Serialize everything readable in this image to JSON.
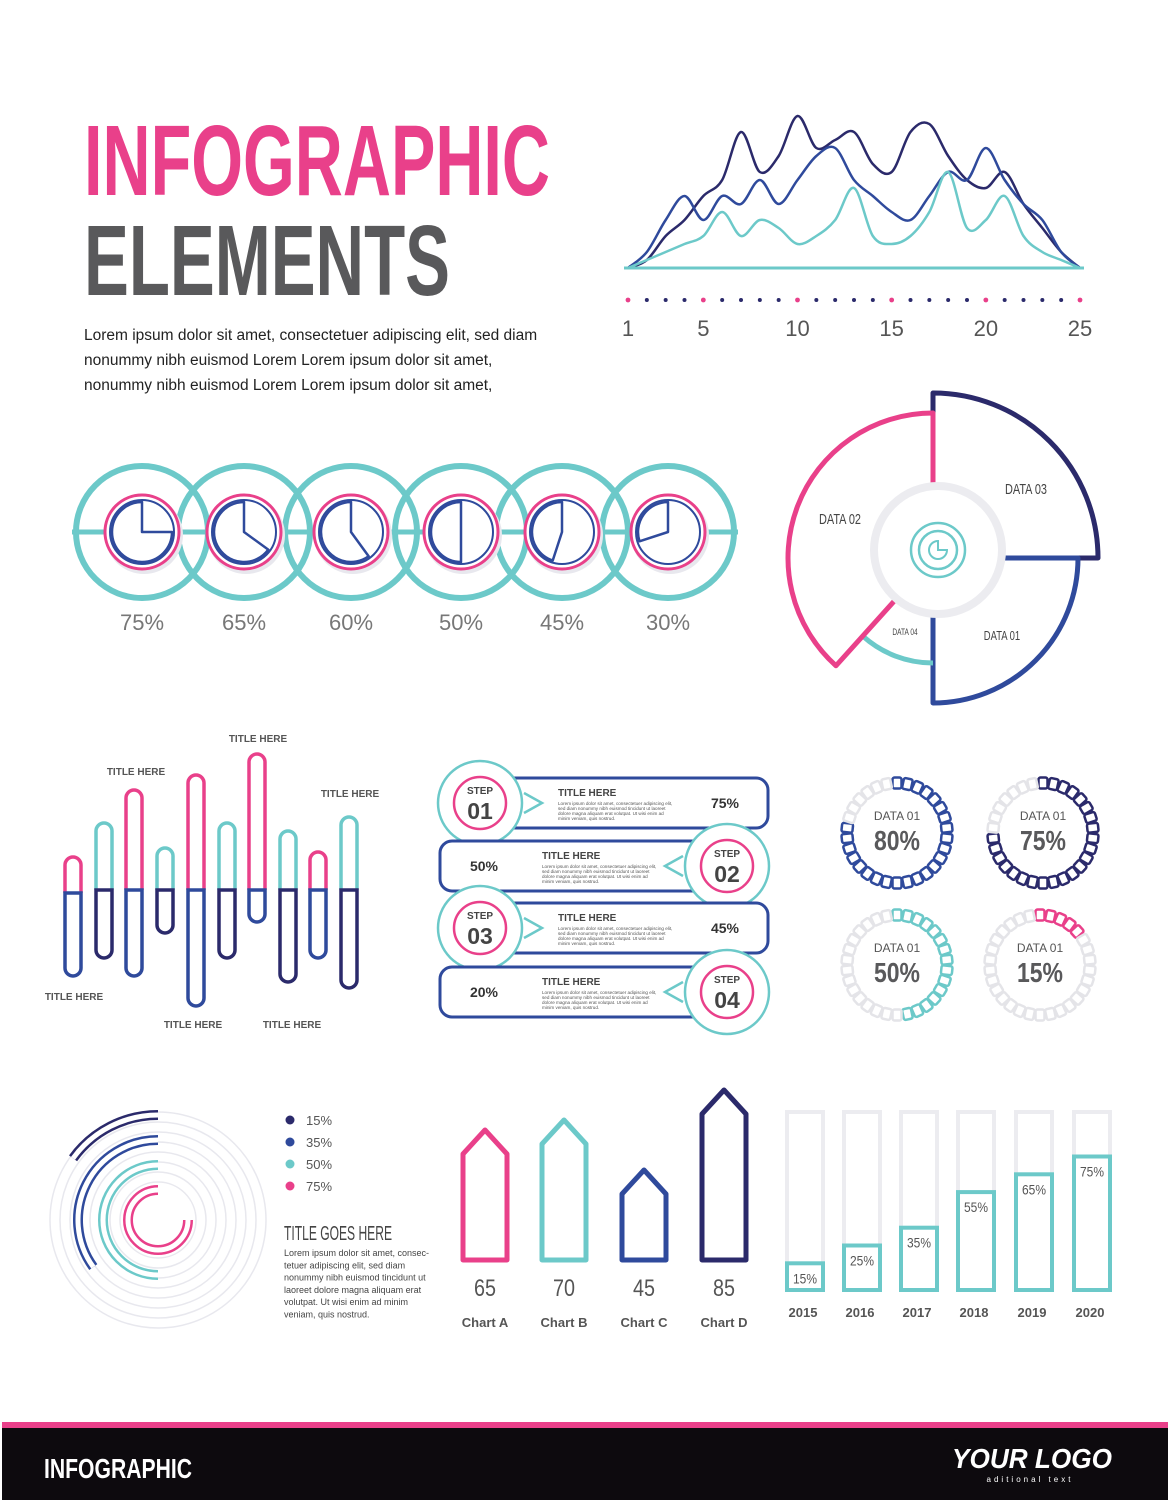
{
  "header": {
    "title_1": "INFOGRAPHIC",
    "title_2": "ELEMENTS",
    "body": [
      "Lorem ipsum dolor sit amet, consectetuer adipiscing elit, sed diam",
      "nonummy nibh euismod Lorem Lorem ipsum dolor sit amet,",
      "nonummy nibh euismod Lorem Lorem ipsum dolor sit amet,"
    ]
  },
  "chart_data": [
    {
      "type": "line",
      "x": [
        1,
        2,
        3,
        4,
        5,
        6,
        7,
        8,
        9,
        10,
        11,
        12,
        13,
        14,
        15,
        16,
        17,
        18,
        19,
        20,
        21,
        22,
        23,
        24,
        25
      ],
      "xlim": [
        1,
        25
      ],
      "xticks": [
        1,
        5,
        10,
        15,
        20,
        25
      ],
      "ylim": [
        0,
        100
      ],
      "series": [
        {
          "color": "#2b2a6b",
          "values": [
            0,
            5,
            20,
            30,
            45,
            55,
            85,
            60,
            70,
            95,
            75,
            80,
            85,
            65,
            60,
            85,
            90,
            70,
            55,
            50,
            60,
            40,
            25,
            10,
            0
          ]
        },
        {
          "color": "#2f4a9c",
          "values": [
            0,
            10,
            30,
            45,
            30,
            45,
            40,
            55,
            40,
            55,
            70,
            75,
            55,
            45,
            35,
            30,
            45,
            60,
            55,
            75,
            55,
            40,
            30,
            10,
            0
          ]
        },
        {
          "color": "#6cc9c9",
          "values": [
            0,
            5,
            10,
            15,
            20,
            35,
            20,
            30,
            25,
            15,
            20,
            30,
            50,
            20,
            15,
            20,
            35,
            60,
            25,
            30,
            45,
            20,
            10,
            5,
            0
          ]
        }
      ]
    },
    {
      "type": "gauge",
      "values": [
        75,
        65,
        60,
        50,
        45,
        30
      ],
      "value_labels": [
        "75%",
        "65%",
        "60%",
        "50%",
        "45%",
        "30%"
      ],
      "color": "#2f4a9c"
    },
    {
      "type": "ring",
      "categories": [
        "DATA 01",
        "DATA 01",
        "DATA 01",
        "DATA 01"
      ],
      "values": [
        80,
        75,
        50,
        15
      ],
      "value_labels": [
        "80%",
        "75%",
        "50%",
        "15%"
      ],
      "colors": [
        "#2f4a9c",
        "#2b2a6b",
        "#6cc9c9",
        "#e9408a"
      ]
    },
    {
      "type": "radial",
      "title": "TITLE GOES HERE",
      "body": [
        "Lorem ipsum dolor sit amet, consec-",
        "tetuer adipiscing elit, sed diam",
        "nonummy nibh euismod tincidunt ut",
        "laoreet dolore magna aliquam erat",
        "volutpat. Ut wisi enim ad minim",
        "veniam, quis nostrud."
      ],
      "values": [
        15,
        35,
        50,
        75
      ],
      "value_labels": [
        "15%",
        "35%",
        "50%",
        "75%"
      ],
      "colors": [
        "#2b2a6b",
        "#2f4a9c",
        "#6cc9c9",
        "#e9408a"
      ]
    },
    {
      "type": "pencil",
      "categories": [
        "Chart A",
        "Chart B",
        "Chart C",
        "Chart D"
      ],
      "values": [
        65,
        70,
        45,
        85
      ],
      "colors": [
        "#e9408a",
        "#6cc9c9",
        "#2f4a9c",
        "#2b2a6b"
      ],
      "ylim": [
        0,
        100
      ]
    },
    {
      "type": "column",
      "categories": [
        "2015",
        "2016",
        "2017",
        "2018",
        "2019",
        "2020"
      ],
      "values": [
        15,
        25,
        35,
        55,
        65,
        75
      ],
      "value_labels": [
        "15%",
        "25%",
        "35%",
        "55%",
        "65%",
        "75%"
      ],
      "color": "#6cc9c9",
      "ylim": [
        0,
        100
      ]
    }
  ],
  "polar": {
    "labels": [
      "DATA 03",
      "DATA 02",
      "DATA 04",
      "DATA 01"
    ]
  },
  "bar_titles": [
    "TITLE HERE",
    "TITLE HERE",
    "TITLE HERE",
    "TITLE HERE",
    "TITLE HERE",
    "TITLE HERE"
  ],
  "steps": [
    {
      "label": "STEP",
      "number": "01",
      "title": "TITLE HERE",
      "text": [
        "Lorem ipsum dolor sit amet, consectetuer adipiscing elit,",
        "sed diam nonummy nibh euismod tincidunt ut laoreet",
        "dolore magna aliquam erat volutpat. Ut wisi enim ad",
        "minim veniam, quis nostrud."
      ],
      "percent": "75%"
    },
    {
      "label": "STEP",
      "number": "02",
      "title": "TITLE HERE",
      "text": [
        "Lorem ipsum dolor sit amet, consectetuer adipiscing elit,",
        "sed diam nonummy nibh euismod tincidunt ut laoreet",
        "dolore magna aliquam erat volutpat. Ut wisi enim ad",
        "minim veniam, quis nostrud."
      ],
      "percent": "50%"
    },
    {
      "label": "STEP",
      "number": "03",
      "title": "TITLE HERE",
      "text": [
        "Lorem ipsum dolor sit amet, consectetuer adipiscing elit,",
        "sed diam nonummy nibh euismod tincidunt ut laoreet",
        "dolore magna aliquam erat volutpat. Ut wisi enim ad",
        "minim veniam, quis nostrud."
      ],
      "percent": "45%"
    },
    {
      "label": "STEP",
      "number": "04",
      "title": "TITLE HERE",
      "text": [
        "Lorem ipsum dolor sit amet, consectetuer adipiscing elit,",
        "sed diam nonummy nibh euismod tincidunt ut laoreet",
        "dolore magna aliquam erat volutpat. Ut wisi enim ad",
        "minim veniam, quis nostrud."
      ],
      "percent": "20%"
    }
  ],
  "footer": {
    "brand": "INFOGRAPHIC",
    "logo": "YOUR LOGO",
    "tagline": "aditional text"
  }
}
